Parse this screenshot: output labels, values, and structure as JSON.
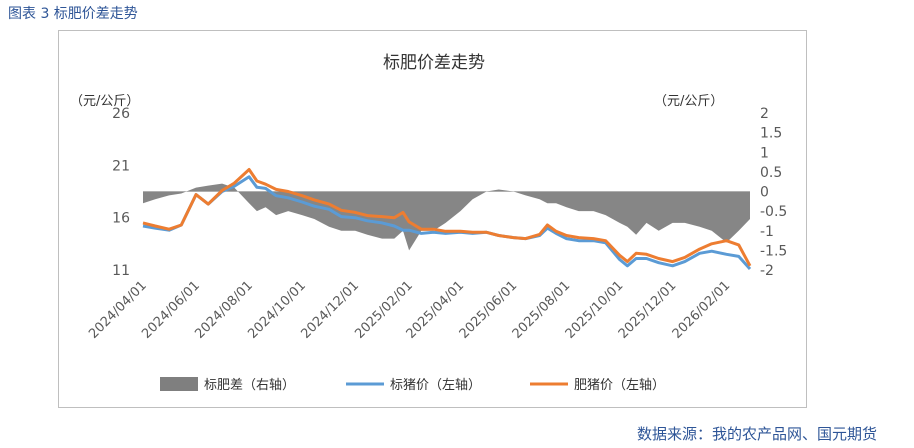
{
  "caption": "图表 3  标肥价差走势",
  "source": "数据来源：我的农产品网、国元期货",
  "chart_data": {
    "type": "line",
    "title": "标肥价差走势",
    "left_unit": "（元/公斤）",
    "right_unit": "（元/公斤）",
    "y_left": {
      "ticks": [
        "26",
        "21",
        "16",
        "11"
      ],
      "lim": [
        11,
        26
      ]
    },
    "y_right": {
      "ticks": [
        "2",
        "1.5",
        "1",
        "0.5",
        "0",
        "-0.5",
        "-1",
        "-1.5",
        "-2"
      ],
      "lim": [
        -2,
        2
      ]
    },
    "x_ticks": [
      "2024/04/01",
      "2024/06/01",
      "2024/08/01",
      "2024/10/01",
      "2024/12/01",
      "2025/02/01",
      "2025/04/01",
      "2025/06/01",
      "2025/08/01",
      "2025/10/01",
      "2025/12/01",
      "2026/02/01"
    ],
    "x": [
      "2024/04/01",
      "2024/04/15",
      "2024/05/01",
      "2024/05/15",
      "2024/06/01",
      "2024/06/15",
      "2024/07/01",
      "2024/07/15",
      "2024/08/01",
      "2024/08/10",
      "2024/08/20",
      "2024/09/01",
      "2024/09/15",
      "2024/10/01",
      "2024/10/15",
      "2024/11/01",
      "2024/11/15",
      "2024/12/01",
      "2024/12/15",
      "2025/01/01",
      "2025/01/15",
      "2025/01/25",
      "2025/02/01",
      "2025/02/15",
      "2025/03/01",
      "2025/03/15",
      "2025/04/01",
      "2025/04/15",
      "2025/05/01",
      "2025/05/15",
      "2025/06/01",
      "2025/06/15",
      "2025/07/01",
      "2025/07/10",
      "2025/07/20",
      "2025/08/01",
      "2025/08/15",
      "2025/09/01",
      "2025/09/15",
      "2025/10/01",
      "2025/10/10",
      "2025/10/20",
      "2025/11/01",
      "2025/11/15",
      "2025/12/01",
      "2025/12/15",
      "2026/01/01",
      "2026/01/15",
      "2026/02/01",
      "2026/02/15",
      "2026/02/28"
    ],
    "series": [
      {
        "name": "标肥差（右轴）",
        "type": "area",
        "axis": "right",
        "color": "#7f7f7f",
        "values": [
          -0.3,
          -0.2,
          -0.1,
          -0.05,
          0.1,
          0.15,
          0.2,
          0.1,
          -0.3,
          -0.5,
          -0.4,
          -0.6,
          -0.5,
          -0.6,
          -0.7,
          -0.9,
          -1.0,
          -1.0,
          -1.1,
          -1.2,
          -1.2,
          -1.0,
          -1.5,
          -1.0,
          -1.0,
          -0.8,
          -0.5,
          -0.2,
          0.0,
          0.05,
          0.0,
          -0.1,
          -0.2,
          -0.3,
          -0.3,
          -0.4,
          -0.5,
          -0.5,
          -0.6,
          -0.8,
          -0.9,
          -1.1,
          -0.8,
          -1.0,
          -0.8,
          -0.8,
          -0.9,
          -1.0,
          -1.3,
          -1.0,
          -0.7
        ]
      },
      {
        "name": "标猪价（左轴）",
        "type": "line",
        "axis": "left",
        "color": "#5b9bd5",
        "values": [
          15.2,
          15.0,
          14.8,
          15.3,
          18.2,
          17.3,
          18.5,
          19.0,
          19.9,
          18.9,
          18.8,
          18.1,
          17.9,
          17.5,
          17.1,
          16.8,
          16.1,
          16.0,
          15.7,
          15.5,
          15.2,
          14.8,
          14.8,
          14.5,
          14.6,
          14.5,
          14.6,
          14.5,
          14.6,
          14.3,
          14.1,
          14.0,
          14.3,
          15.0,
          14.5,
          14.0,
          13.8,
          13.8,
          13.6,
          12.0,
          11.4,
          12.1,
          12.1,
          11.7,
          11.4,
          11.8,
          12.6,
          12.8,
          12.5,
          12.3,
          11.1
        ]
      },
      {
        "name": "肥猪价（左轴）",
        "type": "line",
        "axis": "left",
        "color": "#ed7d31",
        "values": [
          15.5,
          15.2,
          14.9,
          15.3,
          18.2,
          17.3,
          18.6,
          19.3,
          20.6,
          19.5,
          19.2,
          18.7,
          18.5,
          18.1,
          17.7,
          17.3,
          16.7,
          16.5,
          16.2,
          16.1,
          16.0,
          16.5,
          15.6,
          14.9,
          14.9,
          14.7,
          14.7,
          14.6,
          14.6,
          14.3,
          14.1,
          14.0,
          14.4,
          15.3,
          14.7,
          14.3,
          14.1,
          14.0,
          13.8,
          12.4,
          11.8,
          12.6,
          12.5,
          12.1,
          11.8,
          12.2,
          13.0,
          13.5,
          13.8,
          13.4,
          11.4
        ]
      }
    ]
  }
}
